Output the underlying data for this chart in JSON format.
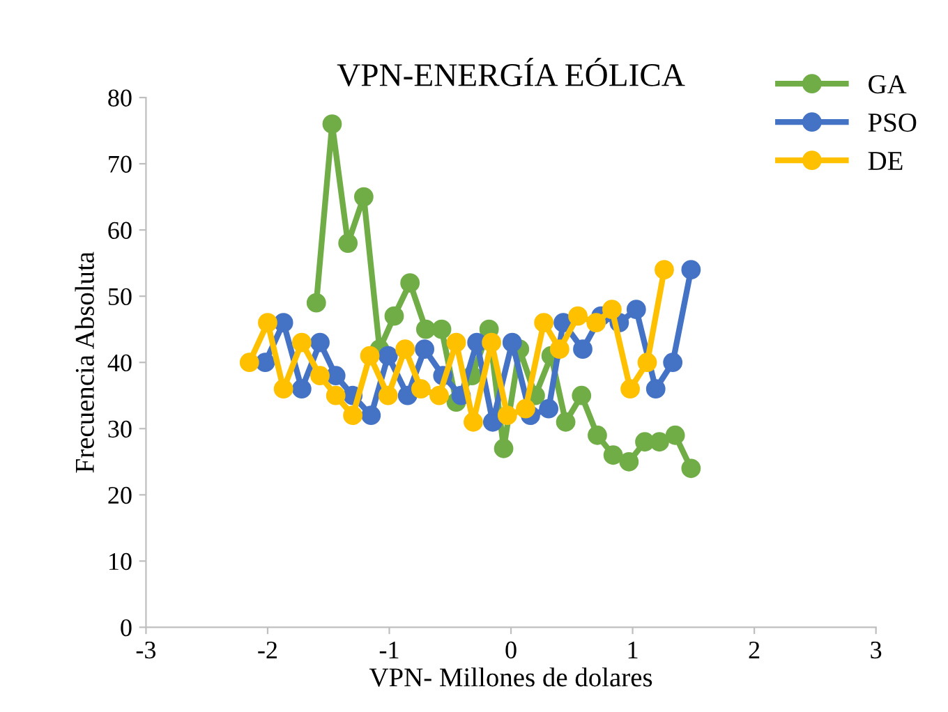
{
  "chart_data": {
    "type": "line",
    "title": "VPN-ENERGÍA EÓLICA",
    "xlabel": "VPN- Millones de dolares",
    "ylabel": "Frecuencia Absoluta",
    "xlim": [
      -3,
      3
    ],
    "xticks": [
      -3,
      -2,
      -1,
      0,
      1,
      2,
      3
    ],
    "ylim": [
      0,
      80
    ],
    "yticks": [
      0,
      10,
      20,
      30,
      40,
      50,
      60,
      70,
      80
    ],
    "grid": false,
    "legend": "top right",
    "marker": "circle",
    "line_style": "solid",
    "series": [
      {
        "name": "GA",
        "color": "#70ad47",
        "x": [
          -1.6,
          -1.47,
          -1.34,
          -1.21,
          -1.08,
          -0.96,
          -0.83,
          -0.7,
          -0.57,
          -0.45,
          -0.32,
          -0.18,
          -0.06,
          0.07,
          0.2,
          0.33,
          0.45,
          0.58,
          0.71,
          0.84,
          0.97,
          1.1,
          1.22,
          1.35,
          1.48
        ],
        "values": [
          49,
          76,
          58,
          65,
          42,
          47,
          52,
          45,
          45,
          34,
          38,
          45,
          27,
          42,
          35,
          41,
          31,
          35,
          29,
          26,
          25,
          28,
          28,
          29,
          24
        ]
      },
      {
        "name": "PSO",
        "color": "#4472c4",
        "x": [
          -2.02,
          -1.87,
          -1.72,
          -1.57,
          -1.44,
          -1.3,
          -1.15,
          -1.01,
          -0.85,
          -0.71,
          -0.56,
          -0.41,
          -0.28,
          -0.15,
          0.01,
          0.16,
          0.31,
          0.43,
          0.59,
          0.74,
          0.89,
          1.03,
          1.19,
          1.33,
          1.48
        ],
        "values": [
          40,
          46,
          36,
          43,
          38,
          35,
          32,
          41,
          35,
          42,
          38,
          35,
          43,
          31,
          43,
          32,
          33,
          46,
          42,
          47,
          46,
          48,
          36,
          40,
          54
        ]
      },
      {
        "name": "DE",
        "color": "#ffc000",
        "x": [
          -2.15,
          -2.0,
          -1.87,
          -1.72,
          -1.57,
          -1.44,
          -1.3,
          -1.16,
          -1.01,
          -0.87,
          -0.74,
          -0.59,
          -0.45,
          -0.31,
          -0.16,
          -0.03,
          0.12,
          0.27,
          0.4,
          0.55,
          0.7,
          0.83,
          0.98,
          1.12,
          1.26
        ],
        "values": [
          40,
          46,
          36,
          43,
          38,
          35,
          32,
          41,
          35,
          42,
          36,
          35,
          43,
          31,
          43,
          32,
          33,
          46,
          42,
          47,
          46,
          48,
          36,
          40,
          54
        ]
      }
    ]
  }
}
